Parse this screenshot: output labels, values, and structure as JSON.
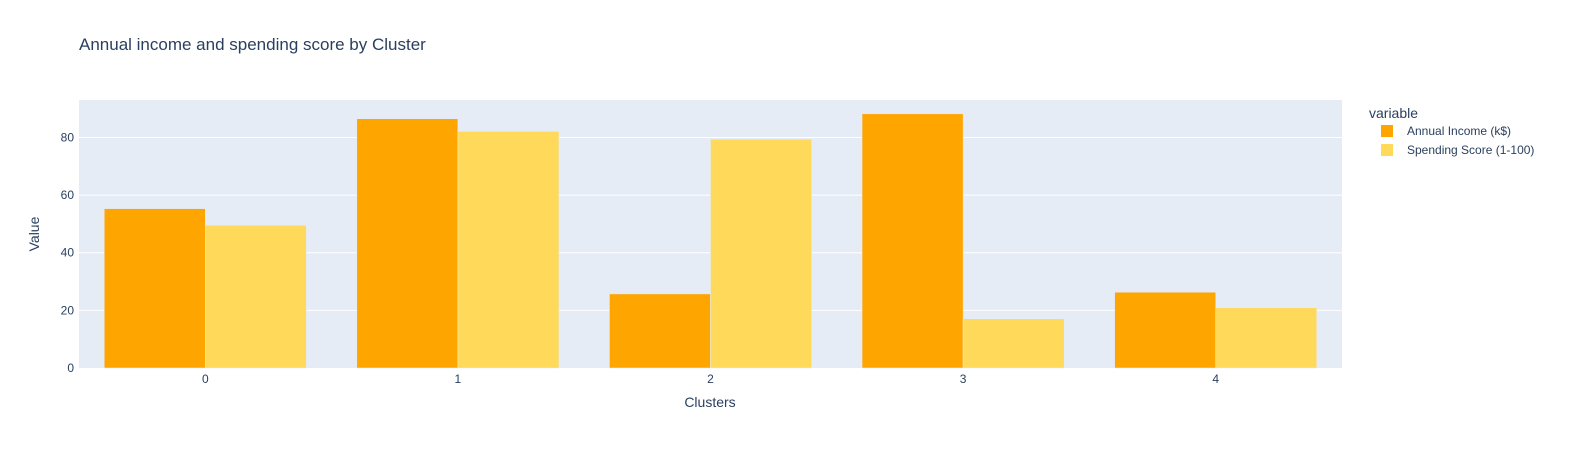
{
  "chart_data": {
    "type": "bar",
    "title": "Annual income and spending score by Cluster",
    "xlabel": "Clusters",
    "ylabel": "Value",
    "categories": [
      "0",
      "1",
      "2",
      "3",
      "4"
    ],
    "series": [
      {
        "name": "Annual Income (k$)",
        "color": "#FFA500",
        "values": [
          55.3,
          86.5,
          25.7,
          88.2,
          26.3
        ]
      },
      {
        "name": "Spending Score (1-100)",
        "color": "#FFD959",
        "values": [
          49.5,
          82.1,
          79.4,
          17.1,
          20.9
        ]
      }
    ],
    "ylim": [
      0,
      93
    ],
    "yticks": [
      0,
      20,
      40,
      60,
      80
    ],
    "grid": true,
    "legend": {
      "title": "variable",
      "placement": "right"
    },
    "colors": {
      "plot_background": "#E5ECF6",
      "gridline": "#FFFFFF",
      "text": "#2A3F5F"
    }
  }
}
